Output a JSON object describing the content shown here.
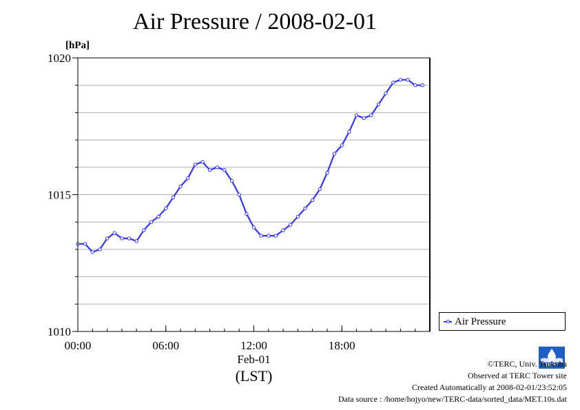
{
  "chart_data": {
    "type": "line",
    "title": "Air Pressure / 2008-02-01",
    "ylabel": "[hPa]",
    "xlabel": "(LST)",
    "date_label": "Feb-01",
    "ylim": [
      1010,
      1020
    ],
    "xlim": [
      0,
      24
    ],
    "y_ticks": [
      {
        "value": 1010,
        "label": "1010"
      },
      {
        "value": 1015,
        "label": "1015"
      },
      {
        "value": 1020,
        "label": "1020"
      }
    ],
    "y_minor_step": 1,
    "x_ticks": [
      {
        "value": 0,
        "label": "00:00"
      },
      {
        "value": 6,
        "label": "06:00"
      },
      {
        "value": 12,
        "label": "12:00"
      },
      {
        "value": 18,
        "label": "18:00"
      }
    ],
    "grid": true,
    "legend_position": "bottom-right, outside plot",
    "series": [
      {
        "name": "Air Pressure",
        "color": "#3333ff",
        "x": [
          0,
          0.5,
          1,
          1.5,
          2,
          2.5,
          3,
          3.5,
          4,
          4.5,
          5,
          5.5,
          6,
          6.5,
          7,
          7.5,
          8,
          8.5,
          9,
          9.5,
          10,
          10.5,
          11,
          11.5,
          12,
          12.5,
          13,
          13.5,
          14,
          14.5,
          15,
          15.5,
          16,
          16.5,
          17,
          17.5,
          18,
          18.5,
          19,
          19.5,
          20,
          20.5,
          21,
          21.5,
          22,
          22.5,
          23,
          23.5
        ],
        "values": [
          1013.2,
          1013.2,
          1012.9,
          1013.0,
          1013.4,
          1013.6,
          1013.4,
          1013.4,
          1013.3,
          1013.7,
          1014.0,
          1014.2,
          1014.5,
          1014.9,
          1015.3,
          1015.6,
          1016.1,
          1016.2,
          1015.9,
          1016.0,
          1015.9,
          1015.5,
          1015.0,
          1014.3,
          1013.8,
          1013.5,
          1013.5,
          1013.5,
          1013.7,
          1013.9,
          1014.2,
          1014.5,
          1014.8,
          1015.2,
          1015.8,
          1016.5,
          1016.8,
          1017.3,
          1017.9,
          1017.8,
          1017.9,
          1018.3,
          1018.7,
          1019.1,
          1019.2,
          1019.2,
          1019.0,
          1019.0
        ]
      }
    ]
  },
  "credits": {
    "copyright": "©TERC, Univ. Tsukuba",
    "observed": "Observed at TERC Tower site",
    "created": "Created Automatically at 2008-02-01/23:52:05",
    "source": "Data source : /home/hojyo/new/TERC-data/sorted_data/MET.10s.dat",
    "logo_text": "TERC"
  }
}
